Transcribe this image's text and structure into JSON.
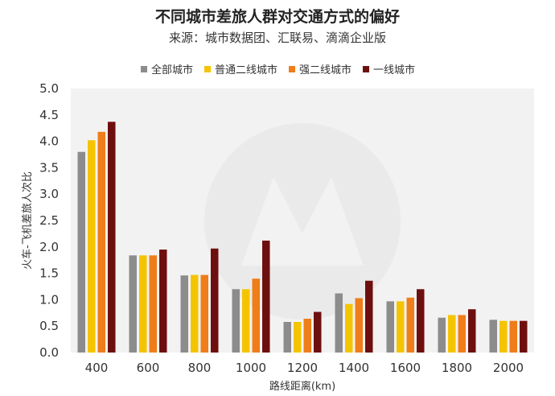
{
  "title": "不同城市差旅人群对交通方式的偏好",
  "subtitle": "来源：城市数据团、汇联易、滴滴企业版",
  "chart_data": {
    "type": "bar",
    "title": "不同城市差旅人群对交通方式的偏好",
    "subtitle": "来源：城市数据团、汇联易、滴滴企业版",
    "xlabel": "路线距离(km)",
    "ylabel": "火车-飞机差旅人次比",
    "ylim": [
      0,
      5
    ],
    "yticks": [
      "0.0",
      "0.5",
      "1.0",
      "1.5",
      "2.0",
      "2.5",
      "3.0",
      "3.5",
      "4.0",
      "4.5",
      "5.0"
    ],
    "categories": [
      "400",
      "600",
      "800",
      "1000",
      "1200",
      "1400",
      "1600",
      "1800",
      "2000"
    ],
    "legend_position": "top",
    "grid": false,
    "series": [
      {
        "name": "全部城市",
        "color": "#8c8c8c",
        "values": [
          3.8,
          1.84,
          1.46,
          1.2,
          0.58,
          1.12,
          0.97,
          0.66,
          0.62
        ]
      },
      {
        "name": "普通二线城市",
        "color": "#f5c400",
        "values": [
          4.02,
          1.84,
          1.47,
          1.2,
          0.58,
          0.92,
          0.97,
          0.71,
          0.6
        ]
      },
      {
        "name": "强二线城市",
        "color": "#ef7d1a",
        "values": [
          4.18,
          1.84,
          1.47,
          1.4,
          0.64,
          1.03,
          1.04,
          0.71,
          0.6
        ]
      },
      {
        "name": "一线城市",
        "color": "#6e0f0f",
        "values": [
          4.37,
          1.95,
          1.97,
          2.12,
          0.77,
          1.36,
          1.2,
          0.82,
          0.6
        ]
      }
    ]
  }
}
